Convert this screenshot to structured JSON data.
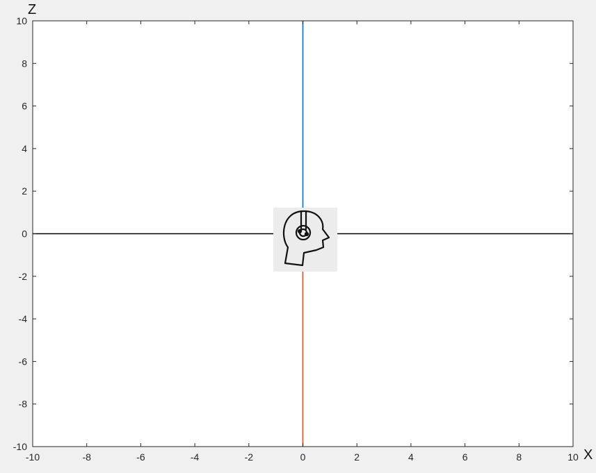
{
  "chart_data": {
    "type": "line",
    "xlabel": "X",
    "ylabel": "Z",
    "xlim": [
      -10,
      10
    ],
    "ylim": [
      -10,
      10
    ],
    "x_ticks": [
      -10,
      -8,
      -6,
      -4,
      -2,
      0,
      2,
      4,
      6,
      8,
      10
    ],
    "y_ticks": [
      -10,
      -8,
      -6,
      -4,
      -2,
      0,
      2,
      4,
      6,
      8,
      10
    ],
    "grid": false,
    "series": [
      {
        "color": "#0072bd",
        "x": [
          0,
          0
        ],
        "y": [
          0,
          10
        ]
      },
      {
        "color": "#d95319",
        "x": [
          0,
          0
        ],
        "y": [
          -10,
          0
        ]
      },
      {
        "color": "#000000",
        "x": [
          -10,
          10
        ],
        "y": [
          0,
          0
        ]
      }
    ],
    "marker": {
      "icon": "head-with-headphones-icon",
      "x": 0,
      "y": 0
    }
  },
  "colors": {
    "figure_background": "#f0f0f0",
    "axes_background": "#ffffff",
    "axes_edge": "#262626"
  }
}
